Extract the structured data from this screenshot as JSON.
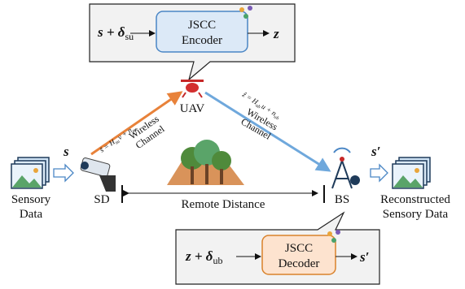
{
  "encoder": {
    "input": [
      "s + δ",
      "su"
    ],
    "label": [
      "JSCC",
      "Encoder"
    ],
    "output": "z"
  },
  "uav": "UAV",
  "uplink": {
    "formula": [
      "s̃ = H",
      "su",
      "v + n",
      "su"
    ],
    "label": [
      "Wireless",
      "Channel"
    ]
  },
  "downlink": {
    "formula": [
      "ẑ = H",
      "ub",
      "u + n",
      "ub"
    ],
    "label": [
      "Wireless",
      "Channel"
    ]
  },
  "source": {
    "symbol": "s",
    "label": [
      "Sensory",
      "Data"
    ],
    "device": "SD"
  },
  "distance": "Remote Distance",
  "receiver": {
    "device": "BS",
    "symbol": "s′",
    "label": [
      "Reconstructed",
      "Sensory Data"
    ]
  },
  "decoder": {
    "input": [
      "z + δ",
      "ub"
    ],
    "label": [
      "JSCC",
      "Decoder"
    ],
    "output": "s′"
  }
}
